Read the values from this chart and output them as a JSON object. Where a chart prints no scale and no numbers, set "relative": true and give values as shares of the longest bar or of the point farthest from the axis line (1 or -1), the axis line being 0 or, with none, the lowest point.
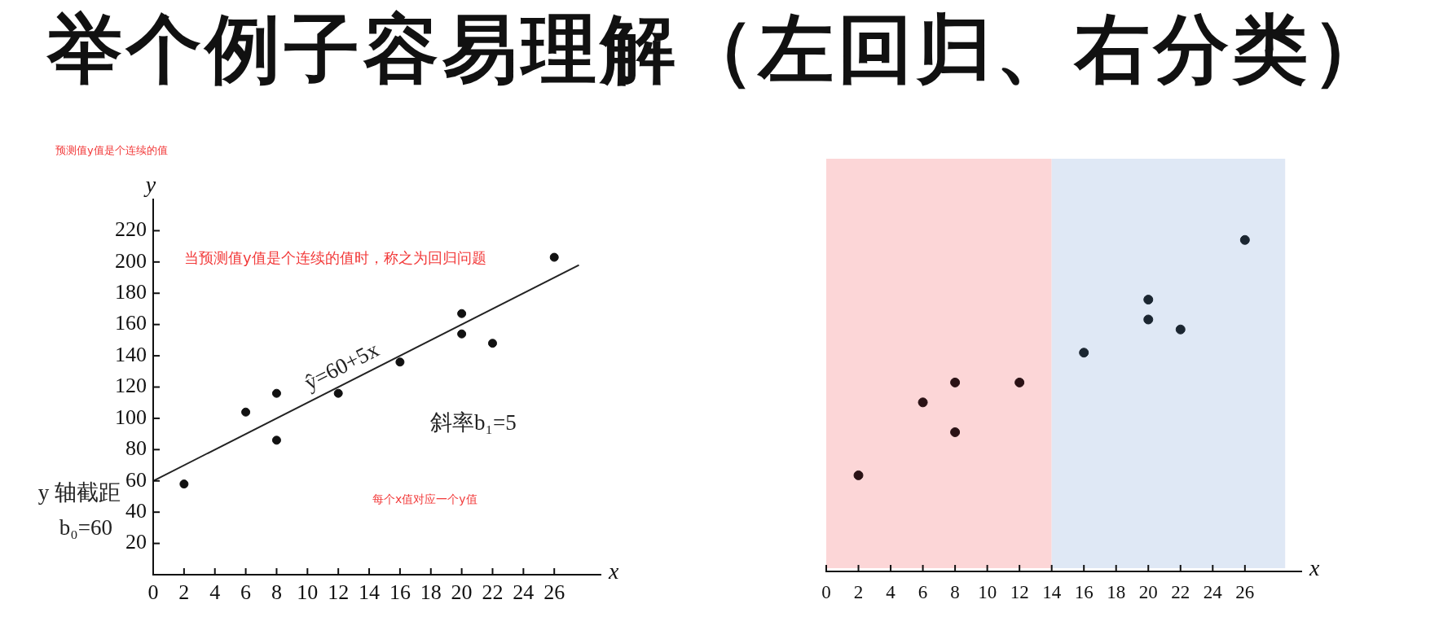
{
  "chart_data": [
    {
      "type": "scatter",
      "title": "举个例子容易理解（左回归、右分类）",
      "subtitle": "预测值y值是个连续的值",
      "xlabel": "x",
      "ylabel": "y",
      "xlim": [
        0,
        29
      ],
      "xticks": [
        0,
        2,
        4,
        6,
        8,
        10,
        12,
        14,
        16,
        18,
        20,
        22,
        24,
        26
      ],
      "ylim": [
        0,
        240
      ],
      "yticks": [
        20,
        40,
        60,
        80,
        100,
        120,
        140,
        160,
        180,
        200,
        220
      ],
      "series": [
        {
          "color": "#111111",
          "marker": "circle",
          "x": [
            2,
            6,
            8,
            8,
            12,
            16,
            20,
            20,
            22,
            26
          ],
          "values": [
            58,
            104,
            86,
            116,
            116,
            136,
            154,
            167,
            148,
            203
          ]
        },
        {
          "type": "line",
          "marker": "none",
          "color": "#222222",
          "x": [
            0,
            27.6
          ],
          "values": [
            60,
            198
          ]
        }
      ],
      "annotations": [
        {
          "text": "ŷ=60+5x",
          "x": 12.7,
          "y": 124
        },
        "斜率b₁=5",
        "y 轴截距",
        "b₀=60",
        "当预测值y值是个连续的值时，称之为回归问题",
        "每个x值对应一个y值"
      ]
    },
    {
      "type": "scatter",
      "xlabel": "x",
      "xlim": [
        0,
        29.5
      ],
      "xticks": [
        0,
        2,
        4,
        6,
        8,
        10,
        12,
        14,
        16,
        18,
        20,
        22,
        24,
        26
      ],
      "relative": true,
      "tick_labels": "x",
      "marker": "circle",
      "bands": [
        {
          "axis": "x",
          "from": 0,
          "to": 14,
          "color": "#fcd6d7"
        },
        {
          "axis": "x",
          "from": 14,
          "to": 28.5,
          "color": "#dfe8f5"
        }
      ],
      "series": [
        {
          "color": "#2a1215",
          "x": [
            2,
            6,
            8,
            8,
            12
          ],
          "values": [
            0.29,
            0.51,
            0.42,
            0.57,
            0.57
          ]
        },
        {
          "color": "#1b2631",
          "x": [
            16,
            20,
            20,
            22,
            26
          ],
          "values": [
            0.66,
            0.82,
            0.76,
            0.73,
            1
          ]
        }
      ]
    }
  ]
}
